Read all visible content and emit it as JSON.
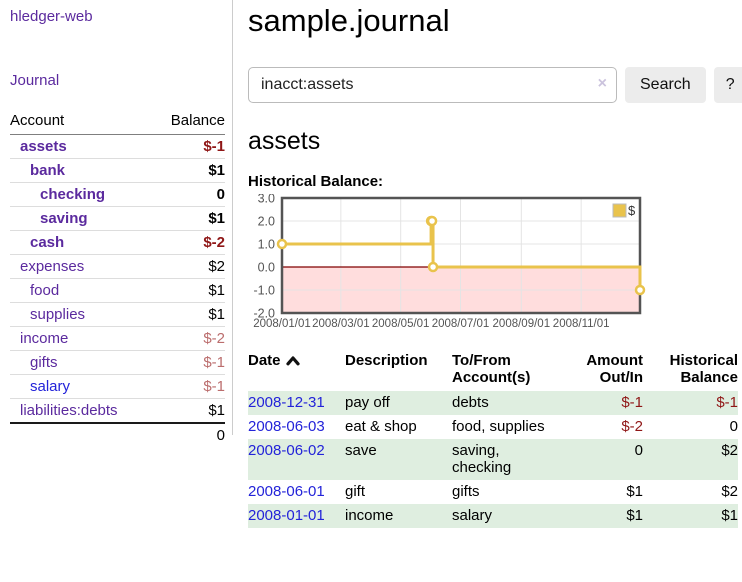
{
  "app": {
    "brand": "hledger-web",
    "nav": {
      "journal": "Journal"
    }
  },
  "sidebar": {
    "accounts": {
      "headers": {
        "account": "Account",
        "balance": "Balance"
      },
      "rows": [
        {
          "name": "assets",
          "level": 0,
          "bold": true,
          "balance": "$-1",
          "balance_tone": "neg-strong",
          "link_tone": "visited"
        },
        {
          "name": "bank",
          "level": 1,
          "bold": true,
          "balance": "$1",
          "balance_tone": "normal",
          "link_tone": "visited"
        },
        {
          "name": "checking",
          "level": 2,
          "bold": true,
          "balance": "0",
          "balance_tone": "normal",
          "link_tone": "visited"
        },
        {
          "name": "saving",
          "level": 2,
          "bold": true,
          "balance": "$1",
          "balance_tone": "normal",
          "link_tone": "visited"
        },
        {
          "name": "cash",
          "level": 1,
          "bold": true,
          "balance": "$-2",
          "balance_tone": "neg-strong",
          "link_tone": "visited"
        },
        {
          "name": "expenses",
          "level": 0,
          "bold": false,
          "balance": "$2",
          "balance_tone": "normal",
          "link_tone": "visited"
        },
        {
          "name": "food",
          "level": 1,
          "bold": false,
          "balance": "$1",
          "balance_tone": "normal",
          "link_tone": "visited"
        },
        {
          "name": "supplies",
          "level": 1,
          "bold": false,
          "balance": "$1",
          "balance_tone": "normal",
          "link_tone": "visited"
        },
        {
          "name": "income",
          "level": 0,
          "bold": false,
          "balance": "$-2",
          "balance_tone": "neg-muted",
          "link_tone": "visited"
        },
        {
          "name": "gifts",
          "level": 1,
          "bold": false,
          "balance": "$-1",
          "balance_tone": "neg-muted",
          "link_tone": "visited"
        },
        {
          "name": "salary",
          "level": 1,
          "bold": false,
          "balance": "$-1",
          "balance_tone": "neg-muted",
          "link_tone": "unvisited"
        },
        {
          "name": "liabilities:debts",
          "level": 0,
          "bold": false,
          "balance": "$1",
          "balance_tone": "normal",
          "link_tone": "visited"
        }
      ],
      "total": "0"
    }
  },
  "main": {
    "title": "sample.journal",
    "search": {
      "value": "inacct:assets",
      "clear_icon": "×",
      "search_label": "Search",
      "help_label": "?"
    },
    "account": {
      "title": "assets",
      "chart_label": "Historical Balance:"
    }
  },
  "chart_data": {
    "type": "line",
    "step": true,
    "title": "Historical Balance:",
    "series": [
      {
        "name": "$",
        "color": "#e9c34c",
        "points": [
          [
            "2008-01-01",
            1
          ],
          [
            "2008-06-01",
            2
          ],
          [
            "2008-06-02",
            2
          ],
          [
            "2008-06-03",
            0
          ],
          [
            "2008-12-31",
            -1
          ]
        ]
      }
    ],
    "x_range": [
      "2008-01-01",
      "2008-12-31"
    ],
    "y_range": [
      -2,
      3
    ],
    "x_tick_labels": [
      "2008/01/01",
      "2008/03/01",
      "2008/05/01",
      "2008/07/01",
      "2008/09/01",
      "2008/11/01"
    ],
    "y_tick_values": [
      3,
      2,
      1,
      0,
      -1,
      -2
    ],
    "y_tick_labels": [
      "3.0",
      "2.0",
      "1.0",
      "0.0",
      "-1.0",
      "-2.0"
    ],
    "legend": {
      "position": "top-right",
      "entries": [
        {
          "label": "$",
          "color": "#e9c34c"
        }
      ]
    },
    "grid": true,
    "negative_region_color": "#ffdddd",
    "zero_line_color": "#800000",
    "border_color": "#545454",
    "grid_color": "#e4e4e4",
    "tick_label_color": "#545454"
  },
  "register": {
    "headers": [
      {
        "label": "Date",
        "sort": "ascending",
        "align": "left"
      },
      {
        "label": "Description",
        "align": "left"
      },
      {
        "label": "To/From\nAccount(s)",
        "align": "left"
      },
      {
        "label": "Amount\nOut/In",
        "align": "right"
      },
      {
        "label": "Historical\nBalance",
        "align": "right"
      }
    ],
    "rows": [
      {
        "date": "2008-12-31",
        "description": "pay off",
        "accounts": "debts",
        "amount": "$-1",
        "amount_tone": "negative",
        "balance": "$-1",
        "balance_tone": "negative"
      },
      {
        "date": "2008-06-03",
        "description": "eat & shop",
        "accounts": "food, supplies",
        "amount": "$-2",
        "amount_tone": "negative",
        "balance": "0",
        "balance_tone": "normal"
      },
      {
        "date": "2008-06-02",
        "description": "save",
        "accounts": "saving,\nchecking",
        "amount": "0",
        "amount_tone": "normal",
        "balance": "$2",
        "balance_tone": "normal"
      },
      {
        "date": "2008-06-01",
        "description": "gift",
        "accounts": "gifts",
        "amount": "$1",
        "amount_tone": "normal",
        "balance": "$2",
        "balance_tone": "normal"
      },
      {
        "date": "2008-01-01",
        "description": "income",
        "accounts": "salary",
        "amount": "$1",
        "amount_tone": "normal",
        "balance": "$1",
        "balance_tone": "normal"
      }
    ]
  },
  "colors": {
    "accent_purple": "#5b2a9e",
    "link_blue": "#2323d9",
    "negative_strong": "#8f1616",
    "negative_muted": "#bb6d6d",
    "row_green": "#dfeee0",
    "chart_line_gold": "#e9c34c",
    "chart_negative_region": "#ffdddd",
    "chart_zero_line": "#800000"
  }
}
